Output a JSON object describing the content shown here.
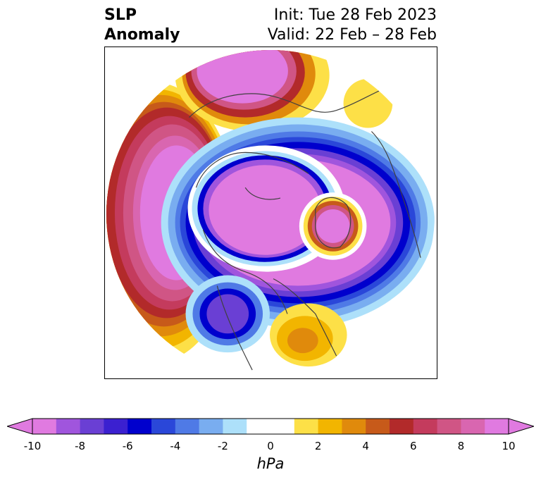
{
  "title": {
    "left_line1": "SLP",
    "left_line2": "Anomaly",
    "right_line1": "Init: Tue 28 Feb 2023",
    "right_line2": "Valid: 22 Feb – 28 Feb"
  },
  "colorbar": {
    "unit": "hPa",
    "min": -10,
    "max": 10,
    "tick_labels": [
      "-10",
      "-8",
      "-6",
      "-4",
      "-2",
      "0",
      "2",
      "4",
      "6",
      "8",
      "10"
    ],
    "colors": [
      "#e07ae0",
      "#a055dd",
      "#6a3fd4",
      "#3b20d0",
      "#0000cd",
      "#2a47d9",
      "#4f7ae6",
      "#79adf0",
      "#ade0fa",
      "#ffffff",
      "#ffffff",
      "#fde047",
      "#f2b500",
      "#e08a0c",
      "#c75a1a",
      "#b22a2a",
      "#c43b5d",
      "#d05585",
      "#d966b0",
      "#e07ae0"
    ]
  },
  "map": {
    "projection": "north-polar-stereographic",
    "features": [
      "coastlines",
      "country-borders",
      "state-borders"
    ]
  }
}
